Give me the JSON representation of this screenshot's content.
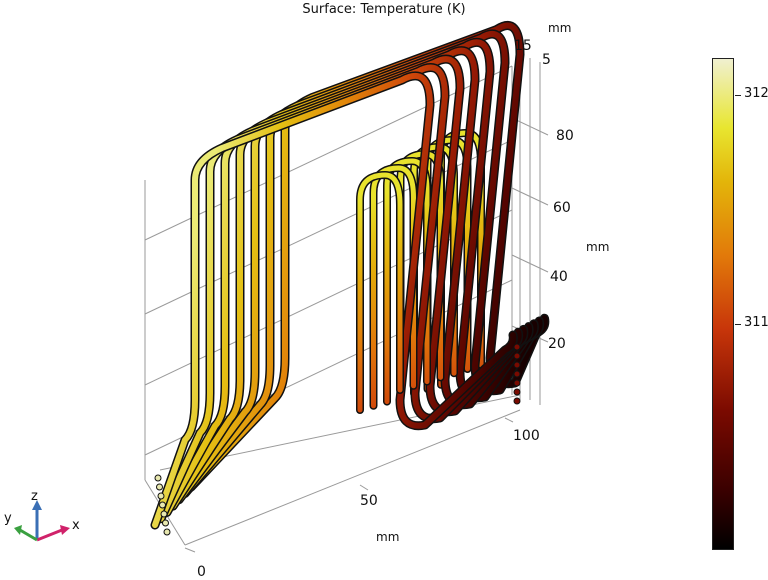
{
  "chart_data": {
    "type": "surface-3d",
    "title": "Surface: Temperature (K)",
    "x_axis": {
      "unit": "mm",
      "ticks": [
        "0",
        "50",
        "100"
      ]
    },
    "y_axis": {
      "unit": "mm",
      "ticks": [
        "15",
        "5"
      ]
    },
    "z_axis": {
      "unit": "mm",
      "ticks": [
        "20",
        "40",
        "60",
        "80"
      ]
    },
    "colorbar": {
      "ticks": [
        "311",
        "312"
      ],
      "tick_values": [
        311,
        312
      ],
      "range": [
        310.2,
        312.1
      ],
      "colormap": "heat-camera"
    },
    "triad": {
      "x": "x",
      "y": "y",
      "z": "z"
    },
    "colors": {
      "cold": "#1a0000",
      "mid": "#e3a30a",
      "hot": "#f0f0c8",
      "tube_edge": "#111111"
    }
  }
}
